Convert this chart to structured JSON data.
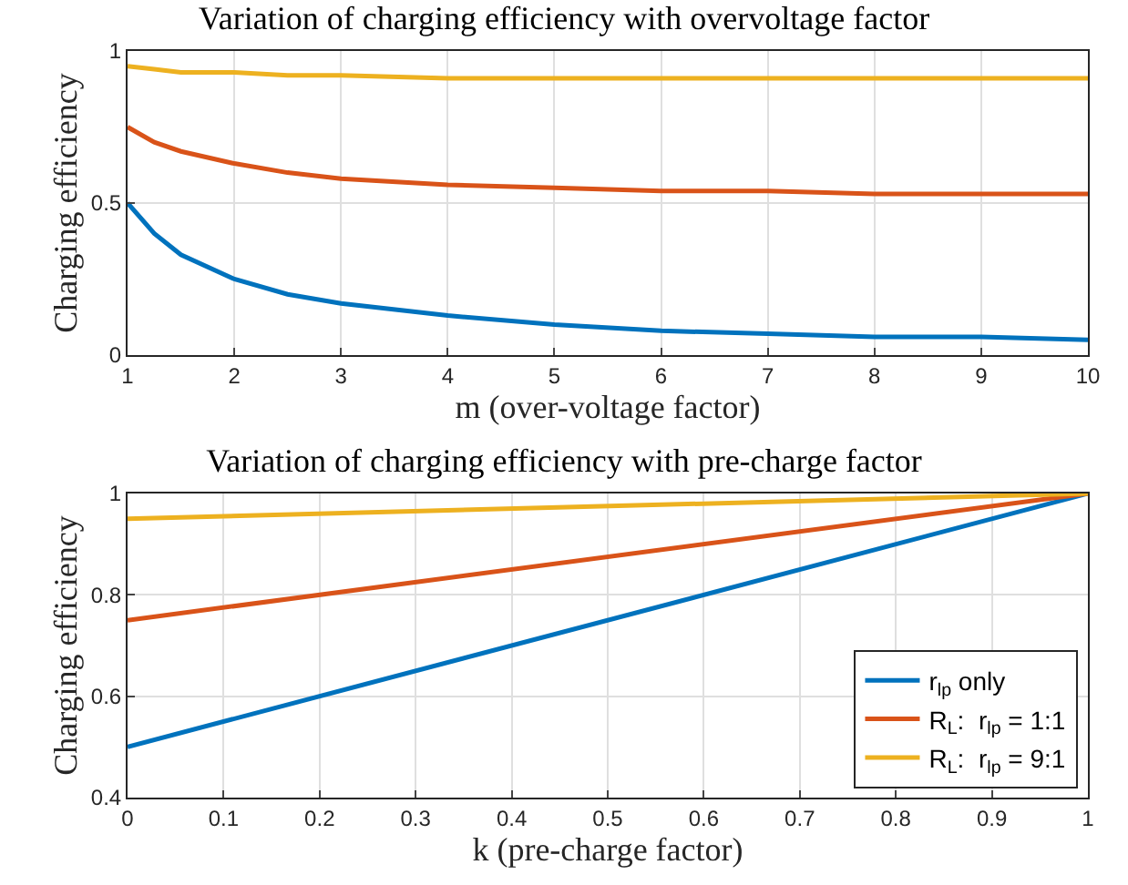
{
  "chart_data": [
    {
      "type": "line",
      "title": "Variation of charging efficiency with overvoltage factor",
      "xlabel": "m (over-voltage factor)",
      "ylabel": "Charging efficiency",
      "xlim": [
        1,
        10
      ],
      "xticks": [
        1,
        2,
        3,
        4,
        5,
        6,
        7,
        8,
        9,
        10
      ],
      "ylim": [
        0,
        1
      ],
      "yticks": [
        0,
        0.5,
        1
      ],
      "grid": true,
      "x": [
        1,
        1.25,
        1.5,
        2,
        2.5,
        3,
        4,
        5,
        6,
        7,
        8,
        9,
        10
      ],
      "series": [
        {
          "color": "#0072bd",
          "values": [
            0.5,
            0.4,
            0.33,
            0.25,
            0.2,
            0.17,
            0.13,
            0.1,
            0.08,
            0.07,
            0.06,
            0.06,
            0.05
          ]
        },
        {
          "color": "#d95319",
          "values": [
            0.75,
            0.7,
            0.67,
            0.63,
            0.6,
            0.58,
            0.56,
            0.55,
            0.54,
            0.54,
            0.53,
            0.53,
            0.53
          ]
        },
        {
          "color": "#edb120",
          "values": [
            0.95,
            0.94,
            0.93,
            0.93,
            0.92,
            0.92,
            0.91,
            0.91,
            0.91,
            0.91,
            0.91,
            0.91,
            0.91
          ]
        }
      ]
    },
    {
      "type": "line",
      "title": "Variation of charging efficiency with pre-charge factor",
      "xlabel": "k (pre-charge factor)",
      "ylabel": "Charging efficiency",
      "xlim": [
        0,
        1
      ],
      "xticks": [
        0,
        0.1,
        0.2,
        0.3,
        0.4,
        0.5,
        0.6,
        0.7,
        0.8,
        0.9,
        1
      ],
      "ylim": [
        0.4,
        1
      ],
      "yticks": [
        0.4,
        0.6,
        0.8,
        1
      ],
      "grid": true,
      "legend": "bottom right",
      "x": [
        0,
        1
      ],
      "series": [
        {
          "name": "r$_{lp}$ only",
          "color": "#0072bd",
          "values": [
            0.5,
            1
          ]
        },
        {
          "name": "R$_{L}$:  r$_{lp}$ = 1:1",
          "color": "#d95319",
          "values": [
            0.75,
            1
          ]
        },
        {
          "name": "R$_{L}$:  r$_{lp}$ = 9:1",
          "color": "#edb120",
          "values": [
            0.95,
            1
          ]
        }
      ]
    }
  ]
}
